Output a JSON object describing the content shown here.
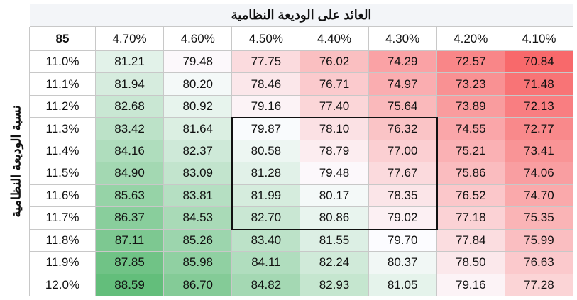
{
  "title": "العائد على الوديعة النظامية",
  "side_label": "نسبة الوديعة النظامية",
  "table": {
    "corner": "85",
    "columns": [
      "4.70%",
      "4.60%",
      "4.50%",
      "4.40%",
      "4.30%",
      "4.20%",
      "4.10%"
    ],
    "rows": [
      {
        "label": "11.0%",
        "values": [
          "81.21",
          "79.48",
          "77.75",
          "76.02",
          "74.29",
          "72.57",
          "70.84"
        ]
      },
      {
        "label": "11.1%",
        "values": [
          "81.94",
          "80.20",
          "78.46",
          "76.71",
          "74.97",
          "73.23",
          "71.48"
        ]
      },
      {
        "label": "11.2%",
        "values": [
          "82.68",
          "80.92",
          "79.16",
          "77.40",
          "75.64",
          "73.89",
          "72.13"
        ]
      },
      {
        "label": "11.3%",
        "values": [
          "83.42",
          "81.64",
          "79.87",
          "78.10",
          "76.32",
          "74.55",
          "72.77"
        ]
      },
      {
        "label": "11.4%",
        "values": [
          "84.16",
          "82.37",
          "80.58",
          "78.79",
          "77.00",
          "75.21",
          "73.41"
        ]
      },
      {
        "label": "11.5%",
        "values": [
          "84.90",
          "83.09",
          "81.28",
          "79.48",
          "77.67",
          "75.86",
          "74.06"
        ]
      },
      {
        "label": "11.6%",
        "values": [
          "85.63",
          "83.81",
          "81.99",
          "80.17",
          "78.35",
          "76.52",
          "74.70"
        ]
      },
      {
        "label": "11.7%",
        "values": [
          "86.37",
          "84.53",
          "82.70",
          "80.86",
          "79.02",
          "77.18",
          "75.35"
        ]
      },
      {
        "label": "11.8%",
        "values": [
          "87.11",
          "85.26",
          "83.40",
          "81.55",
          "79.70",
          "77.84",
          "75.99"
        ]
      },
      {
        "label": "11.9%",
        "values": [
          "87.85",
          "85.98",
          "84.11",
          "82.24",
          "80.37",
          "78.50",
          "76.63"
        ]
      },
      {
        "label": "12.0%",
        "values": [
          "88.59",
          "86.70",
          "84.82",
          "82.93",
          "81.05",
          "79.16",
          "77.28"
        ]
      }
    ]
  }
}
